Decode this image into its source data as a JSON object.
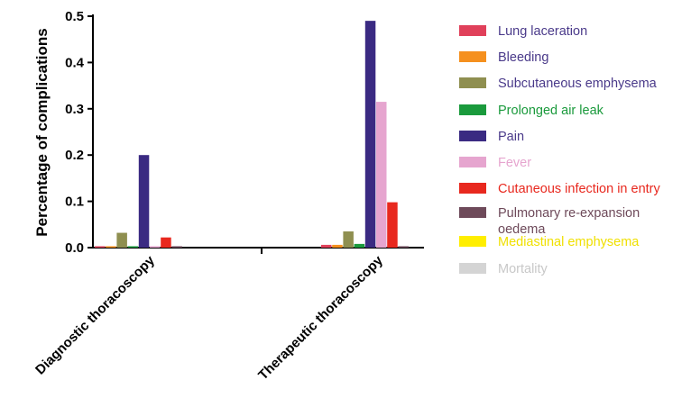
{
  "chart_data": {
    "type": "bar",
    "ylabel": "Percentage of complications",
    "ylim": [
      0,
      0.5
    ],
    "yticks": [
      "0.0",
      "0.1",
      "0.2",
      "0.3",
      "0.4",
      "0.5"
    ],
    "grid": false,
    "legend_position": "right",
    "categories": [
      "Diagnostic thoracoscopy",
      "Therapeutic thoracoscopy"
    ],
    "series": [
      {
        "name": "Lung laceration",
        "color": "#e0405a",
        "values": [
          0.003,
          0.006
        ]
      },
      {
        "name": "Bleeding",
        "color": "#f5901e",
        "values": [
          0.003,
          0.006
        ]
      },
      {
        "name": "Subcutaneous emphysema",
        "color": "#8f8f50",
        "values": [
          0.032,
          0.035
        ]
      },
      {
        "name": "Prolonged air leak",
        "color": "#1a9a3c",
        "values": [
          0.003,
          0.008
        ]
      },
      {
        "name": "Pain",
        "color": "#3a2a82",
        "values": [
          0.2,
          0.49
        ]
      },
      {
        "name": "Fever",
        "color": "#e6a5cf",
        "values": [
          0.003,
          0.315
        ]
      },
      {
        "name": "Cutaneous infection in entry",
        "color": "#e8281e",
        "values": [
          0.022,
          0.098
        ]
      },
      {
        "name": "Pulmonary re-expansion oedema",
        "color": "#6e4a5a",
        "values": [
          0.003,
          0.003
        ]
      },
      {
        "name": "Mediastinal emphysema",
        "color": "#ffee00",
        "values": [
          0.0,
          0.0
        ]
      },
      {
        "name": "Mortality",
        "color": "#d4d4d4",
        "values": [
          0.0,
          0.0
        ]
      }
    ]
  },
  "legend": {
    "items": [
      {
        "label": "Lung laceration",
        "color": "#e0405a",
        "text_color": "#4a3a8a"
      },
      {
        "label": "Bleeding",
        "color": "#f5901e",
        "text_color": "#4a3a8a"
      },
      {
        "label": "Subcutaneous emphysema",
        "color": "#8f8f50",
        "text_color": "#4a3a8a"
      },
      {
        "label": "Prolonged air leak",
        "color": "#1a9a3c",
        "text_color": "#1a9a3c"
      },
      {
        "label": "Pain",
        "color": "#3a2a82",
        "text_color": "#4a3a8a"
      },
      {
        "label": "Fever",
        "color": "#e6a5cf",
        "text_color": "#e6a5cf"
      },
      {
        "label": "Cutaneous infection in entry",
        "color": "#e8281e",
        "text_color": "#e8281e"
      },
      {
        "label_line1": "Pulmonary re-expansion",
        "label_line2": "oedema",
        "color": "#6e4a5a",
        "text_color": "#6e4a5a"
      },
      {
        "label": "Mediastinal emphysema",
        "color": "#ffee00",
        "text_color": "#f0e000"
      },
      {
        "label": "Mortality",
        "color": "#d4d4d4",
        "text_color": "#c8c8c8"
      }
    ]
  }
}
